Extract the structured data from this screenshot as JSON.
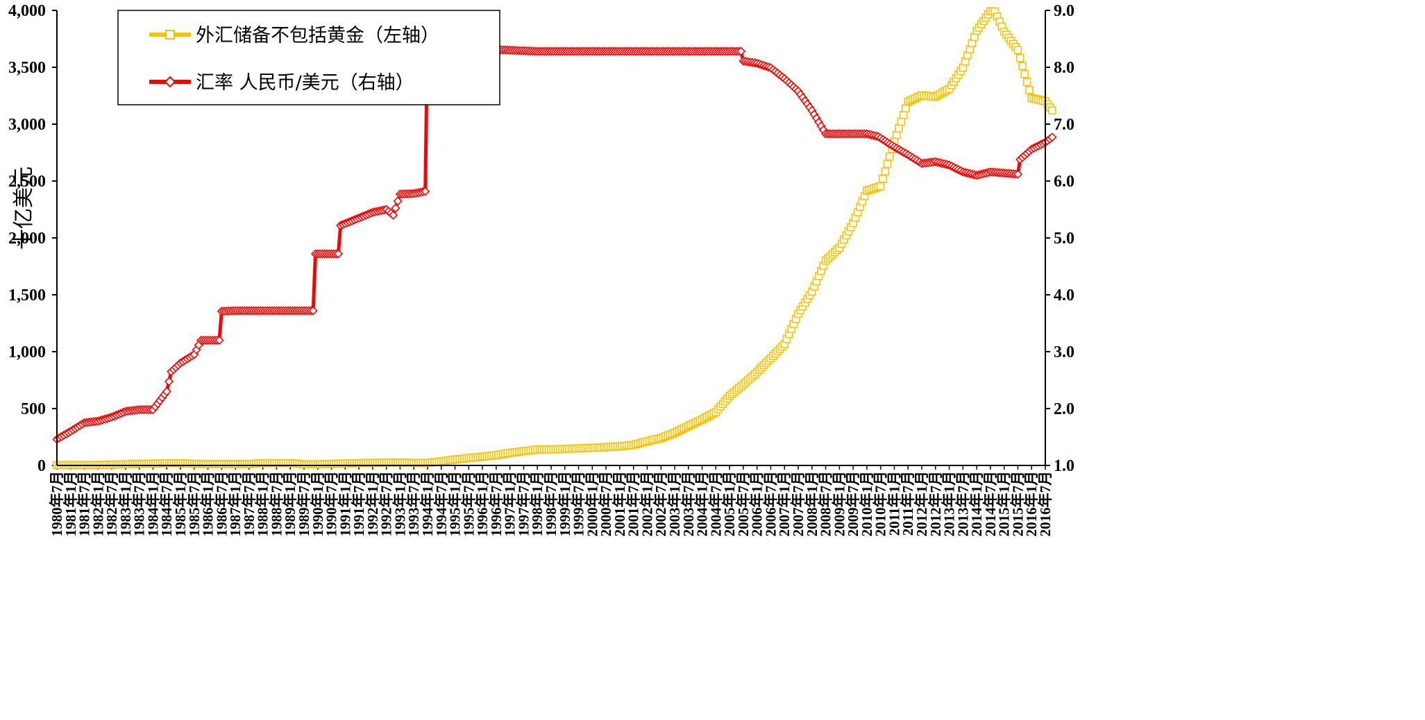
{
  "chart_data": {
    "type": "line",
    "title": "",
    "ylabel_left": "十亿美元",
    "left_axis": {
      "min": 0,
      "max": 4000,
      "ticks": [
        "0",
        "500",
        "1,000",
        "1,500",
        "2,000",
        "2,500",
        "3,000",
        "3,500",
        "4,000"
      ]
    },
    "right_axis": {
      "min": 1.0,
      "max": 9.0,
      "ticks": [
        "1.0",
        "2.0",
        "3.0",
        "4.0",
        "5.0",
        "6.0",
        "7.0",
        "8.0",
        "9.0"
      ]
    },
    "x_range": [
      "1980年7月",
      "2016年7月"
    ],
    "x_tick_labels": [
      "1980年7月",
      "1981年1月",
      "1981年7月",
      "1982年1月",
      "1982年7月",
      "1983年1月",
      "1983年7月",
      "1984年1月",
      "1984年7月",
      "1985年1月",
      "1985年7月",
      "1986年1月",
      "1986年7月",
      "1987年1月",
      "1987年7月",
      "1988年1月",
      "1988年7月",
      "1989年1月",
      "1989年7月",
      "1990年1月",
      "1990年7月",
      "1991年1月",
      "1991年7月",
      "1992年1月",
      "1992年7月",
      "1993年1月",
      "1993年7月",
      "1994年1月",
      "1994年7月",
      "1995年1月",
      "1995年7月",
      "1996年1月",
      "1996年7月",
      "1997年1月",
      "1997年7月",
      "1998年1月",
      "1998年7月",
      "1999年1月",
      "1999年7月",
      "2000年1月",
      "2000年7月",
      "2001年1月",
      "2001年7月",
      "2002年1月",
      "2002年7月",
      "2003年1月",
      "2003年7月",
      "2004年1月",
      "2004年7月",
      "2005年1月",
      "2005年7月",
      "2006年1月",
      "2006年7月",
      "2007年1月",
      "2007年7月",
      "2008年1月",
      "2008年7月",
      "2009年1月",
      "2009年7月",
      "2010年1月",
      "2010年7月",
      "2011年1月",
      "2011年7月",
      "2012年1月",
      "2012年7月",
      "2013年1月",
      "2013年7月",
      "2014年1月",
      "2014年7月",
      "2015年1月",
      "2015年7月",
      "2016年1月",
      "2016年7月"
    ],
    "legend_placement": "top-left",
    "series": [
      {
        "name": "外汇储备不包括黄金（左轴）",
        "axis": "left",
        "color": "#FFC000",
        "marker": "square",
        "points": [
          [
            "1980-07",
            2
          ],
          [
            "1981-07",
            3
          ],
          [
            "1982-07",
            6
          ],
          [
            "1983-07",
            14
          ],
          [
            "1984-01",
            16
          ],
          [
            "1984-07",
            20
          ],
          [
            "1985-01",
            20
          ],
          [
            "1985-07",
            14
          ],
          [
            "1986-07",
            12
          ],
          [
            "1987-07",
            12
          ],
          [
            "1988-01",
            20
          ],
          [
            "1988-07",
            20
          ],
          [
            "1989-01",
            20
          ],
          [
            "1989-07",
            10
          ],
          [
            "1990-01",
            10
          ],
          [
            "1990-07",
            14
          ],
          [
            "1991-07",
            20
          ],
          [
            "1992-07",
            25
          ],
          [
            "1993-01",
            25
          ],
          [
            "1993-07",
            22
          ],
          [
            "1994-01",
            22
          ],
          [
            "1994-07",
            35
          ],
          [
            "1995-01",
            52
          ],
          [
            "1995-07",
            65
          ],
          [
            "1996-01",
            77
          ],
          [
            "1996-07",
            90
          ],
          [
            "1997-01",
            110
          ],
          [
            "1997-07",
            125
          ],
          [
            "1998-01",
            140
          ],
          [
            "1998-07",
            140
          ],
          [
            "1999-01",
            145
          ],
          [
            "1999-07",
            150
          ],
          [
            "2000-01",
            155
          ],
          [
            "2000-07",
            160
          ],
          [
            "2001-01",
            168
          ],
          [
            "2001-07",
            180
          ],
          [
            "2002-01",
            212
          ],
          [
            "2002-07",
            240
          ],
          [
            "2003-01",
            286
          ],
          [
            "2003-07",
            346
          ],
          [
            "2004-01",
            403
          ],
          [
            "2004-07",
            470
          ],
          [
            "2005-01",
            610
          ],
          [
            "2005-07",
            711
          ],
          [
            "2006-01",
            820
          ],
          [
            "2006-07",
            941
          ],
          [
            "2007-01",
            1066
          ],
          [
            "2007-07",
            1332
          ],
          [
            "2008-01",
            1528
          ],
          [
            "2008-07",
            1800
          ],
          [
            "2009-01",
            1913
          ],
          [
            "2009-07",
            2131
          ],
          [
            "2010-01",
            2415
          ],
          [
            "2010-07",
            2454
          ],
          [
            "2011-01",
            2847
          ],
          [
            "2011-07",
            3197
          ],
          [
            "2012-01",
            3254
          ],
          [
            "2012-07",
            3240
          ],
          [
            "2013-01",
            3310
          ],
          [
            "2013-07",
            3497
          ],
          [
            "2014-01",
            3820
          ],
          [
            "2014-07",
            3993
          ],
          [
            "2014-09",
            3990
          ],
          [
            "2015-01",
            3813
          ],
          [
            "2015-07",
            3651
          ],
          [
            "2016-01",
            3230
          ],
          [
            "2016-07",
            3201
          ],
          [
            "2016-10",
            3121
          ]
        ]
      },
      {
        "name": "汇率 人民币/美元（右轴）",
        "axis": "right",
        "color": "#FF0000",
        "marker": "diamond",
        "points": [
          [
            "1980-07",
            1.46
          ],
          [
            "1981-01",
            1.6
          ],
          [
            "1981-07",
            1.75
          ],
          [
            "1982-01",
            1.78
          ],
          [
            "1982-07",
            1.85
          ],
          [
            "1983-01",
            1.95
          ],
          [
            "1983-07",
            1.98
          ],
          [
            "1984-01",
            1.98
          ],
          [
            "1984-07",
            2.3
          ],
          [
            "1984-09",
            2.65
          ],
          [
            "1985-01",
            2.8
          ],
          [
            "1985-07",
            2.95
          ],
          [
            "1985-10",
            3.2
          ],
          [
            "1986-06",
            3.2
          ],
          [
            "1986-07",
            3.71
          ],
          [
            "1987-01",
            3.72
          ],
          [
            "1988-01",
            3.72
          ],
          [
            "1989-01",
            3.72
          ],
          [
            "1989-11",
            3.72
          ],
          [
            "1989-12",
            4.72
          ],
          [
            "1990-01",
            4.72
          ],
          [
            "1990-10",
            4.72
          ],
          [
            "1990-11",
            5.22
          ],
          [
            "1991-07",
            5.35
          ],
          [
            "1992-01",
            5.45
          ],
          [
            "1992-07",
            5.5
          ],
          [
            "1992-10",
            5.4
          ],
          [
            "1993-01",
            5.77
          ],
          [
            "1993-07",
            5.78
          ],
          [
            "1993-12",
            5.82
          ],
          [
            "1994-01",
            8.7
          ],
          [
            "1994-07",
            8.62
          ],
          [
            "1995-01",
            8.45
          ],
          [
            "1995-07",
            8.31
          ],
          [
            "1996-01",
            8.32
          ],
          [
            "1996-07",
            8.31
          ],
          [
            "1997-01",
            8.3
          ],
          [
            "1998-01",
            8.28
          ],
          [
            "2000-01",
            8.28
          ],
          [
            "2002-01",
            8.28
          ],
          [
            "2004-01",
            8.28
          ],
          [
            "2005-06",
            8.28
          ],
          [
            "2005-07",
            8.11
          ],
          [
            "2006-01",
            8.07
          ],
          [
            "2006-07",
            7.99
          ],
          [
            "2007-01",
            7.8
          ],
          [
            "2007-07",
            7.58
          ],
          [
            "2008-01",
            7.24
          ],
          [
            "2008-07",
            6.83
          ],
          [
            "2009-01",
            6.83
          ],
          [
            "2009-07",
            6.83
          ],
          [
            "2010-01",
            6.83
          ],
          [
            "2010-06",
            6.78
          ],
          [
            "2011-01",
            6.6
          ],
          [
            "2011-07",
            6.46
          ],
          [
            "2012-01",
            6.31
          ],
          [
            "2012-07",
            6.34
          ],
          [
            "2013-01",
            6.28
          ],
          [
            "2013-07",
            6.16
          ],
          [
            "2014-01",
            6.1
          ],
          [
            "2014-07",
            6.16
          ],
          [
            "2015-01",
            6.14
          ],
          [
            "2015-07",
            6.12
          ],
          [
            "2015-08",
            6.38
          ],
          [
            "2016-01",
            6.56
          ],
          [
            "2016-07",
            6.68
          ],
          [
            "2016-10",
            6.77
          ]
        ]
      }
    ]
  }
}
